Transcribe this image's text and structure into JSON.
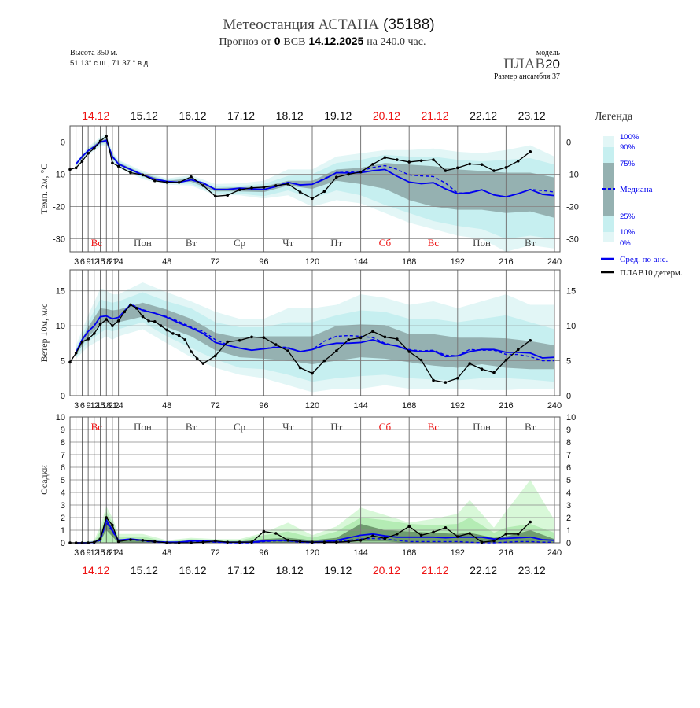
{
  "header": {
    "title_main": "Метеостанция АСТАНА",
    "title_code": "(35188)",
    "sub_prefix": "Прогноз от",
    "sub_hour": "0",
    "sub_tz": "ВСВ",
    "sub_date": "14.12.2025",
    "sub_suffix": "на 240.0 час.",
    "altitude": "Высота 350 м.",
    "coords": "51.13° с.ш., 71.37 ° в.д.",
    "model_label": "модель",
    "model_name": "ПЛАВ",
    "model_num": "20",
    "ensemble_size": "Размер ансамбля 37"
  },
  "legend": {
    "title": "Легенда",
    "p100": "100%",
    "p90": "90%",
    "p75": "75%",
    "median": "Медиана",
    "p25": "25%",
    "p10": "10%",
    "p0": "0%",
    "mean": "Сред. по анс.",
    "det": "ПЛАВ10 детерм."
  },
  "colors": {
    "band_outer": "#e2f6f6",
    "band_mid": "#c6eff0",
    "band_inner": "#95b1b1",
    "precip_outer": "#d8f8d8",
    "precip_mid": "#b4ecb4",
    "precip_inner": "#6f9c6f",
    "mean": "#0000ee",
    "det": "#000000",
    "red": "#ee1111",
    "legend_text": "#0000ee"
  },
  "chart_data": [
    {
      "type": "area",
      "panel": "temperature",
      "ylabel": "Темп. 2м, °C",
      "ylim": [
        -34,
        5
      ],
      "yticks": [
        0,
        -10,
        -20,
        -30
      ],
      "xlim": [
        0,
        240
      ],
      "zero_line": true,
      "band_hours": [
        3,
        9,
        15,
        18,
        21,
        24,
        36,
        48,
        60,
        72,
        84,
        96,
        108,
        120,
        132,
        144,
        156,
        168,
        180,
        192,
        204,
        216,
        228,
        240
      ],
      "p0": [
        -8,
        -4,
        -1.5,
        -1,
        -6,
        -8,
        -11.5,
        -13.2,
        -13.5,
        -16.5,
        -16.5,
        -17.5,
        -16.5,
        -20,
        -18,
        -19,
        -22,
        -25,
        -27,
        -29,
        -30,
        -34,
        -32,
        -33
      ],
      "p10": [
        -7.5,
        -3.5,
        -1,
        -0.5,
        -5.5,
        -7.5,
        -11,
        -12.8,
        -13,
        -16,
        -16,
        -16.8,
        -15,
        -17.5,
        -15,
        -16.5,
        -19.5,
        -22,
        -24.5,
        -26,
        -27,
        -30,
        -29,
        -30
      ],
      "p25": [
        -7.2,
        -3,
        -0.5,
        0,
        -5,
        -7.2,
        -10.6,
        -12.5,
        -12.3,
        -15.3,
        -15.3,
        -15.5,
        -13.5,
        -14.5,
        -12,
        -13,
        -14.5,
        -18,
        -20,
        -21,
        -21,
        -22,
        -21.5,
        -23.5
      ],
      "p75": [
        -6.5,
        -2.3,
        0.5,
        1,
        -4,
        -6.3,
        -9.8,
        -12,
        -11.3,
        -14.3,
        -14,
        -13.8,
        -12,
        -12,
        -8.5,
        -8,
        -6.5,
        -7,
        -7.5,
        -8.5,
        -9,
        -9.5,
        -9.5,
        -11
      ],
      "p90": [
        -6.3,
        -2,
        1,
        1.8,
        -3.5,
        -5.8,
        -9.4,
        -11.7,
        -10.8,
        -13.7,
        -13.5,
        -13,
        -10.5,
        -10,
        -6.5,
        -5.5,
        -4,
        -4.5,
        -4.5,
        -5.5,
        -6,
        -5.5,
        -5,
        -7
      ],
      "p100": [
        -6,
        -1.5,
        1.5,
        2.5,
        -3,
        -5.5,
        -9,
        -11.3,
        -10.3,
        -13,
        -12.8,
        -12,
        -8.5,
        -8.5,
        -4.5,
        -3.5,
        -2.5,
        -2.5,
        -2,
        -3,
        -3.5,
        -2.5,
        -1,
        -4.5
      ],
      "ens_hours": [
        3,
        6,
        9,
        12,
        15,
        18,
        21,
        24,
        30,
        36,
        42,
        48,
        54,
        60,
        66,
        72,
        78,
        84,
        90,
        96,
        102,
        108,
        114,
        120,
        126,
        132,
        138,
        144,
        150,
        156,
        162,
        168,
        174,
        180,
        186,
        192,
        198,
        204,
        210,
        216,
        222,
        228,
        234,
        240
      ],
      "mean": [
        -6.8,
        -4.5,
        -2.7,
        -1.5,
        0,
        0.5,
        -4.5,
        -6.8,
        -8.5,
        -10.2,
        -11.5,
        -12.2,
        -12.5,
        -11.7,
        -12.7,
        -14.7,
        -14.7,
        -14.3,
        -14.5,
        -14.7,
        -13.8,
        -12.5,
        -13.3,
        -13.1,
        -11.5,
        -9.5,
        -9.6,
        -9.5,
        -8.9,
        -8.5,
        -10.6,
        -12.4,
        -12.9,
        -12.6,
        -14.5,
        -16,
        -15.7,
        -14.8,
        -16.4,
        -17,
        -16,
        -14.7,
        -16.2,
        -16.6
      ],
      "median": [
        -6.8,
        -4.5,
        -2.7,
        -1.5,
        0,
        0.5,
        -4.5,
        -6.8,
        -8.5,
        -10.2,
        -11.5,
        -12.2,
        -12.5,
        -11.7,
        -12.7,
        -14.7,
        -14.7,
        -14.3,
        -14.5,
        -14.7,
        -13.8,
        -12.5,
        -13.3,
        -13.1,
        -11.3,
        -9.5,
        -9.3,
        -9,
        -7.9,
        -7.3,
        -8.5,
        -10.2,
        -10.5,
        -10.7,
        -12.7,
        -15.8,
        -15.7,
        -14.8,
        -16.4,
        -17,
        -16,
        -14.7,
        -15,
        -15.5
      ],
      "det_hours": [
        0,
        3,
        6,
        9,
        12,
        15,
        18,
        21,
        24,
        30,
        36,
        42,
        48,
        54,
        60,
        66,
        72,
        78,
        84,
        90,
        96,
        102,
        108,
        114,
        120,
        126,
        132,
        138,
        144,
        150,
        156,
        162,
        168,
        174,
        180,
        186,
        192,
        198,
        204,
        210,
        216,
        222,
        228
      ],
      "det": [
        -8.5,
        -8,
        -6,
        -3.5,
        -2,
        0.3,
        1.8,
        -6.5,
        -7.5,
        -9.5,
        -10.2,
        -12,
        -12.5,
        -12.5,
        -10.8,
        -13.5,
        -16.8,
        -16.5,
        -14.8,
        -14.2,
        -14,
        -13.5,
        -13,
        -15.5,
        -17.5,
        -15.3,
        -10.9,
        -10,
        -9.3,
        -6.9,
        -4.8,
        -5.5,
        -6.2,
        -5.8,
        -5.5,
        -8.9,
        -8,
        -6.8,
        -7,
        -8.9,
        -7.9,
        -5.9,
        -3
      ]
    },
    {
      "type": "area",
      "panel": "wind",
      "ylabel": "Ветер 10м, м/с",
      "ylim": [
        0,
        18
      ],
      "yticks": [
        0,
        5,
        10,
        15
      ],
      "xlim": [
        0,
        240
      ],
      "band_hours": [
        3,
        9,
        15,
        18,
        21,
        24,
        36,
        48,
        60,
        72,
        84,
        96,
        108,
        120,
        132,
        144,
        156,
        168,
        180,
        192,
        204,
        216,
        228,
        240
      ],
      "p0": [
        5.3,
        7,
        8,
        8.5,
        8,
        8.5,
        9.5,
        7.5,
        5.5,
        4,
        3,
        2.5,
        1.5,
        0.5,
        1,
        1,
        1.5,
        1,
        1,
        1,
        0.8,
        0.8,
        1,
        1
      ],
      "p10": [
        5.6,
        7.7,
        9,
        9.5,
        9.2,
        9.5,
        10.5,
        8.5,
        6.8,
        5.2,
        4,
        3.8,
        3,
        2,
        2.5,
        2.8,
        3,
        2.5,
        2.3,
        2.2,
        2.5,
        2.5,
        2.3,
        2
      ],
      "p25": [
        5.9,
        8.4,
        10.2,
        10.5,
        10.3,
        10.5,
        11.3,
        9.8,
        8.5,
        6.5,
        5.5,
        5.3,
        5,
        4.5,
        5,
        5.5,
        5.3,
        4.8,
        4.3,
        4,
        4.5,
        4,
        3.8,
        3.8
      ],
      "p75": [
        6.5,
        9.8,
        12.5,
        12.4,
        12.2,
        12.3,
        13.3,
        12.3,
        11,
        9,
        8.3,
        8.5,
        8.5,
        8.5,
        10,
        10.2,
        10.1,
        8.8,
        8.8,
        8.3,
        8.3,
        8.2,
        7.8,
        7.2
      ],
      "p90": [
        6.8,
        10.5,
        13.8,
        13.5,
        13.3,
        13.5,
        14.8,
        13.5,
        12.5,
        10.5,
        9.8,
        9.8,
        10.5,
        10.5,
        11.5,
        12.2,
        12,
        11,
        11,
        10.5,
        11,
        11.5,
        10.5,
        9.5
      ],
      "p100": [
        7.2,
        11.5,
        15.3,
        15,
        14.5,
        14.5,
        16.2,
        14.8,
        13.5,
        12,
        11,
        11,
        12.5,
        12.5,
        13,
        14.5,
        14,
        13,
        13.5,
        12.5,
        13.5,
        14.5,
        13,
        13
      ],
      "ens_hours": [
        3,
        6,
        9,
        12,
        15,
        18,
        21,
        24,
        30,
        36,
        42,
        48,
        54,
        60,
        66,
        72,
        78,
        84,
        90,
        96,
        102,
        108,
        114,
        120,
        126,
        132,
        138,
        144,
        150,
        156,
        162,
        168,
        174,
        180,
        186,
        192,
        198,
        204,
        210,
        216,
        222,
        228,
        234,
        240
      ],
      "mean": [
        6.2,
        8,
        9.2,
        10,
        11.3,
        11.4,
        11,
        11.2,
        13,
        12.2,
        11.8,
        11.2,
        10.4,
        9.7,
        8.9,
        7.6,
        7.2,
        6.8,
        6.5,
        6.7,
        6.9,
        6.8,
        6.3,
        6.6,
        7.2,
        7.5,
        7.5,
        7.6,
        8,
        7.4,
        7.1,
        6.5,
        6.3,
        6.4,
        5.6,
        5.7,
        6.3,
        6.6,
        6.6,
        6.2,
        6.2,
        6.1,
        5.4,
        5.5
      ],
      "median": [
        6.2,
        8,
        9.2,
        10,
        11.3,
        11.4,
        11,
        11.2,
        13.1,
        12.3,
        11.8,
        11.3,
        10.6,
        9.8,
        9.2,
        8,
        7.3,
        6.8,
        6.5,
        6.7,
        7,
        6.9,
        6.3,
        6.6,
        7.8,
        8.5,
        8.6,
        8.5,
        8.3,
        7.5,
        7.1,
        6.6,
        6.4,
        6.5,
        5.8,
        5.7,
        6.6,
        6.5,
        6.5,
        5.9,
        5.9,
        5.6,
        5,
        5
      ],
      "det_hours": [
        0,
        3,
        6,
        9,
        12,
        15,
        18,
        21,
        24,
        27,
        30,
        33,
        36,
        39,
        42,
        45,
        48,
        51,
        54,
        57,
        60,
        63,
        66,
        72,
        78,
        84,
        90,
        96,
        102,
        108,
        114,
        120,
        126,
        132,
        138,
        144,
        150,
        156,
        162,
        168,
        174,
        180,
        186,
        192,
        198,
        204,
        210,
        216,
        222,
        228
      ],
      "det": [
        4.8,
        6.1,
        7.7,
        8.1,
        8.9,
        10.2,
        10.9,
        10,
        10.7,
        12,
        13,
        12.5,
        11.3,
        10.7,
        10.6,
        10,
        9.4,
        8.9,
        8.6,
        8,
        6.3,
        5.3,
        4.6,
        5.7,
        7.7,
        7.9,
        8.4,
        8.3,
        7.3,
        6.4,
        4,
        3.2,
        5,
        6.4,
        8,
        8.3,
        9.2,
        8.4,
        8.1,
        6.3,
        5.1,
        2.2,
        1.9,
        2.5,
        4.6,
        3.8,
        3.3,
        5.1,
        6.6,
        7.9
      ]
    },
    {
      "type": "area",
      "panel": "precipitation",
      "ylabel": "Осадки",
      "ylim": [
        0,
        10
      ],
      "yticks": [
        0,
        1,
        2,
        3,
        4,
        5,
        6,
        7,
        8,
        9,
        10
      ],
      "xlim": [
        0,
        240
      ],
      "band_hours": [
        3,
        12,
        15,
        18,
        21,
        24,
        36,
        48,
        60,
        72,
        84,
        96,
        108,
        120,
        132,
        144,
        156,
        168,
        180,
        192,
        198,
        210,
        216,
        228,
        240
      ],
      "p25": [
        0,
        0,
        0.1,
        1,
        0.5,
        0,
        0,
        0,
        0,
        0,
        0,
        0,
        0,
        0,
        0,
        0.1,
        0.1,
        0,
        0,
        0,
        0,
        0,
        0,
        0,
        0
      ],
      "p75": [
        0,
        0.05,
        0.5,
        2.2,
        1.2,
        0.3,
        0.3,
        0.05,
        0.2,
        0.1,
        0.1,
        0.3,
        0.4,
        0.2,
        0.4,
        1.5,
        1,
        0.9,
        0.8,
        0.7,
        0.8,
        0.4,
        0.5,
        1,
        0.3
      ],
      "p90": [
        0,
        0.1,
        0.9,
        2.5,
        1.6,
        0.5,
        0.5,
        0.1,
        0.3,
        0.2,
        0.2,
        0.6,
        0.9,
        0.4,
        0.9,
        2,
        1.8,
        1.5,
        1.4,
        1.5,
        2,
        0.8,
        1.2,
        1.5,
        0.8
      ],
      "p100": [
        0,
        0.2,
        1.3,
        2.9,
        2,
        0.7,
        0.7,
        0.2,
        0.4,
        0.3,
        0.3,
        0.8,
        1.6,
        0.6,
        1.3,
        2.8,
        2.2,
        1.6,
        1.9,
        2.3,
        3.4,
        1.2,
        2.5,
        5,
        1.8
      ],
      "ens_hours": [
        3,
        6,
        9,
        12,
        15,
        18,
        21,
        24,
        30,
        36,
        42,
        48,
        54,
        60,
        66,
        72,
        78,
        84,
        90,
        96,
        102,
        108,
        114,
        120,
        126,
        132,
        138,
        144,
        150,
        156,
        162,
        168,
        174,
        180,
        186,
        192,
        198,
        204,
        210,
        216,
        222,
        228,
        234,
        240
      ],
      "mean": [
        0,
        0,
        0,
        0.05,
        0.3,
        1.8,
        1,
        0.2,
        0.3,
        0.2,
        0.1,
        0.05,
        0.05,
        0.15,
        0.15,
        0.1,
        0.05,
        0.05,
        0.05,
        0.15,
        0.2,
        0.2,
        0.1,
        0.05,
        0.1,
        0.2,
        0.4,
        0.6,
        0.7,
        0.55,
        0.45,
        0.45,
        0.45,
        0.45,
        0.4,
        0.45,
        0.45,
        0.45,
        0.3,
        0.35,
        0.4,
        0.45,
        0.25,
        0.2
      ],
      "median": [
        0,
        0,
        0,
        0,
        0.2,
        1.6,
        0.9,
        0.15,
        0.25,
        0.15,
        0.05,
        0,
        0,
        0.1,
        0.1,
        0.05,
        0,
        0,
        0,
        0.1,
        0.15,
        0.15,
        0.05,
        0,
        0.05,
        0.1,
        0.2,
        0.3,
        0.35,
        0.3,
        0.2,
        0.1,
        0.1,
        0.1,
        0.1,
        0.1,
        0.05,
        0,
        0,
        0.05,
        0.1,
        0.1,
        0.05,
        0.05
      ],
      "det_hours": [
        0,
        3,
        6,
        9,
        12,
        15,
        18,
        21,
        24,
        30,
        36,
        42,
        48,
        54,
        60,
        66,
        72,
        78,
        84,
        90,
        96,
        102,
        108,
        114,
        120,
        126,
        132,
        138,
        144,
        150,
        156,
        162,
        168,
        174,
        180,
        186,
        192,
        198,
        204,
        210,
        216,
        222,
        228
      ],
      "det": [
        0,
        0,
        0,
        0,
        0.05,
        0.3,
        2,
        1.4,
        0.1,
        0.25,
        0.2,
        0.1,
        0,
        0,
        0,
        0.05,
        0.15,
        0.05,
        0.05,
        0.05,
        0.9,
        0.75,
        0.2,
        0.1,
        0.05,
        0.05,
        0.05,
        0.1,
        0.2,
        0.55,
        0.35,
        0.7,
        1.3,
        0.6,
        0.85,
        1.2,
        0.5,
        0.75,
        0.05,
        0.15,
        0.7,
        0.7,
        1.65
      ]
    }
  ],
  "x_axis": {
    "early_ticks": [
      "3",
      "6",
      "9",
      "12",
      "15",
      "18",
      "21",
      "24"
    ],
    "ticks": [
      "48",
      "72",
      "96",
      "120",
      "144",
      "168",
      "192",
      "216",
      "240"
    ],
    "dates": [
      {
        "label": "14.12",
        "red": true
      },
      {
        "label": "15.12",
        "red": false
      },
      {
        "label": "16.12",
        "red": false
      },
      {
        "label": "17.12",
        "red": false
      },
      {
        "label": "18.12",
        "red": false
      },
      {
        "label": "19.12",
        "red": false
      },
      {
        "label": "20.12",
        "red": true
      },
      {
        "label": "21.12",
        "red": true
      },
      {
        "label": "22.12",
        "red": false
      },
      {
        "label": "23.12",
        "red": false
      }
    ],
    "weekdays": [
      {
        "label": "Вс",
        "red": true
      },
      {
        "label": "Пон",
        "red": false
      },
      {
        "label": "Вт",
        "red": false
      },
      {
        "label": "Ср",
        "red": false
      },
      {
        "label": "Чт",
        "red": false
      },
      {
        "label": "Пт",
        "red": false
      },
      {
        "label": "Сб",
        "red": true
      },
      {
        "label": "Вс",
        "red": true
      },
      {
        "label": "Пон",
        "red": false
      },
      {
        "label": "Вт",
        "red": false
      }
    ]
  }
}
